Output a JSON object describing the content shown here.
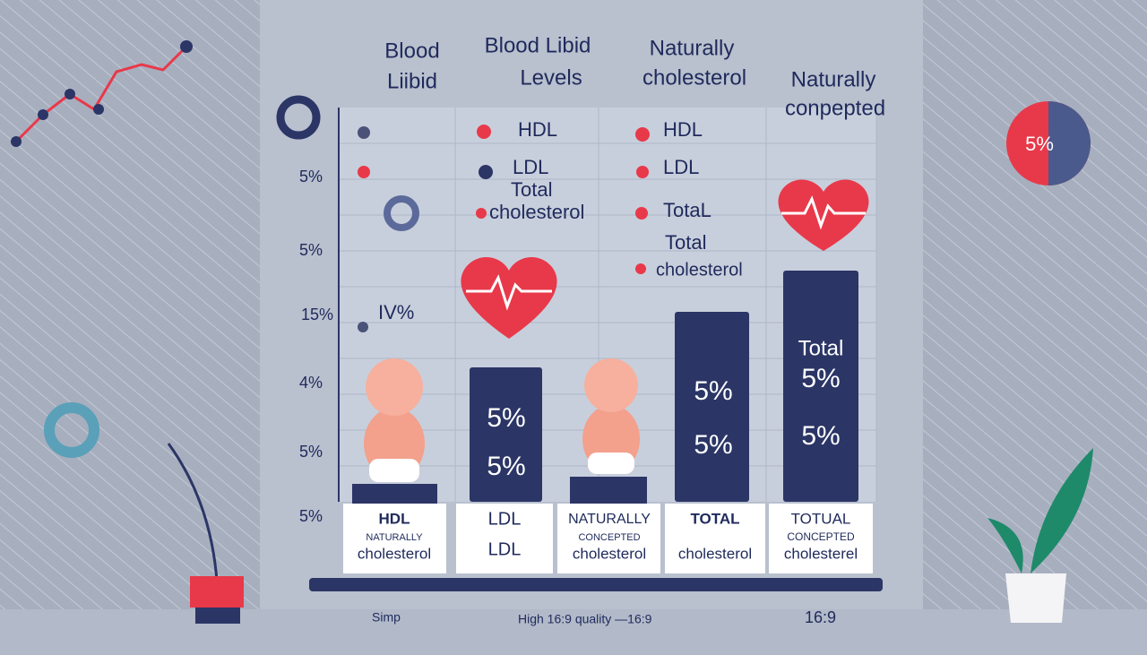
{
  "headers": [
    [
      "Blood",
      "Liibid"
    ],
    [
      "Blood Libid",
      "Levels"
    ],
    [
      "Naturally",
      "cholesterol"
    ],
    [
      "Naturally",
      "conpepted"
    ]
  ],
  "y_labels": [
    "5%",
    "5%",
    "15%",
    "4%",
    "5%",
    "5%"
  ],
  "legend_1": {
    "items": [
      "HDL",
      "LDL",
      "Total",
      "cholesterol"
    ]
  },
  "legend_2": {
    "items": [
      "HDL",
      "LDL",
      "TotaL",
      "Total",
      "cholesterol"
    ]
  },
  "note": "IV%",
  "bar_texts": [
    [
      "5%",
      "5%"
    ],
    [
      "5%",
      "5%"
    ],
    [
      "Total",
      "5%",
      "5%"
    ]
  ],
  "bottom_labels": [
    [
      "HDL",
      "NATURALLY",
      "cholesterol"
    ],
    [
      "LDL",
      "LDL"
    ],
    [
      "NATURALLY",
      "CONCEPTED",
      "cholesterol"
    ],
    [
      "TOTAL",
      "cholesterol"
    ],
    [
      "TOTUAL",
      "CONCEPTED",
      "cholesterel"
    ]
  ],
  "pie_label": "5%",
  "footer": [
    "Simp",
    "High 16:9 quality —16:9",
    "16:9"
  ]
}
